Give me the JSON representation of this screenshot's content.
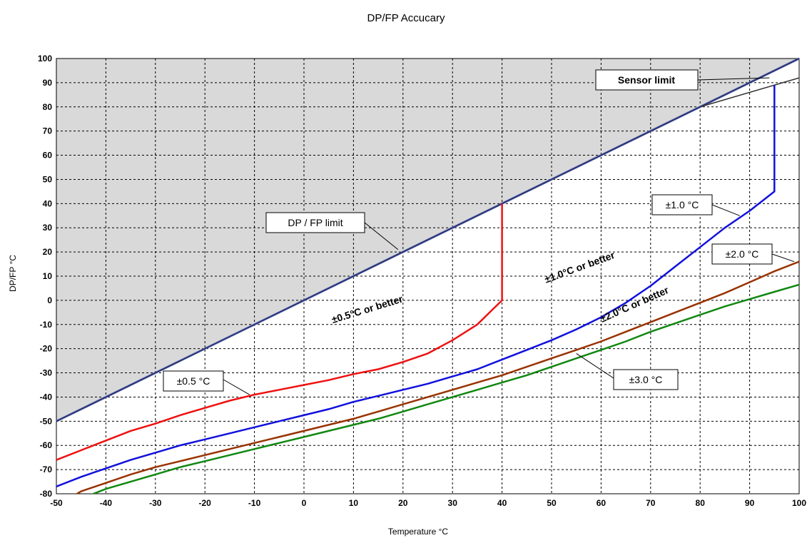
{
  "chart_data": {
    "type": "line",
    "title": "DP/FP Accucary",
    "xlabel": "Temperature °C",
    "ylabel": "DP/FP °C",
    "xlim": [
      -50,
      100
    ],
    "ylim": [
      -80,
      100
    ],
    "x_ticks": [
      -50,
      -40,
      -30,
      -20,
      -10,
      0,
      10,
      20,
      30,
      40,
      50,
      60,
      70,
      80,
      90,
      100
    ],
    "y_ticks": [
      -80,
      -70,
      -60,
      -50,
      -40,
      -30,
      -20,
      -10,
      0,
      10,
      20,
      30,
      40,
      50,
      60,
      70,
      80,
      90,
      100
    ],
    "grid": true,
    "series": [
      {
        "name": "±0.5 °C",
        "color": "#ee1111",
        "points": [
          [
            -50,
            -66
          ],
          [
            -45,
            -62
          ],
          [
            -40,
            -58
          ],
          [
            -35,
            -54
          ],
          [
            -30,
            -51
          ],
          [
            -25,
            -47.5
          ],
          [
            -20,
            -44.5
          ],
          [
            -15,
            -41.5
          ],
          [
            -10,
            -39
          ],
          [
            -5,
            -37
          ],
          [
            0,
            -35
          ],
          [
            5,
            -33
          ],
          [
            10,
            -30.5
          ],
          [
            15,
            -28.5
          ],
          [
            20,
            -25.5
          ],
          [
            25,
            -22
          ],
          [
            30,
            -16.5
          ],
          [
            35,
            -10
          ],
          [
            38,
            -4
          ],
          [
            40,
            0
          ],
          [
            40,
            40
          ]
        ]
      },
      {
        "name": "±1.0 °C",
        "color": "#1111dd",
        "points": [
          [
            -50,
            -77
          ],
          [
            -45,
            -73
          ],
          [
            -40,
            -69.5
          ],
          [
            -35,
            -66
          ],
          [
            -30,
            -63
          ],
          [
            -25,
            -60
          ],
          [
            -20,
            -57.5
          ],
          [
            -15,
            -55
          ],
          [
            -10,
            -52.5
          ],
          [
            -5,
            -50
          ],
          [
            0,
            -47.5
          ],
          [
            5,
            -45
          ],
          [
            10,
            -42
          ],
          [
            15,
            -39.5
          ],
          [
            20,
            -37
          ],
          [
            25,
            -34.5
          ],
          [
            30,
            -31.5
          ],
          [
            35,
            -28.5
          ],
          [
            40,
            -24.5
          ],
          [
            45,
            -20.5
          ],
          [
            50,
            -16.5
          ],
          [
            55,
            -12
          ],
          [
            60,
            -7
          ],
          [
            65,
            -1
          ],
          [
            70,
            6
          ],
          [
            75,
            14
          ],
          [
            80,
            22
          ],
          [
            85,
            30
          ],
          [
            90,
            37
          ],
          [
            95,
            45
          ],
          [
            95,
            89
          ]
        ]
      },
      {
        "name": "±2.0 °C",
        "color": "#993300",
        "points": [
          [
            -50,
            -85
          ],
          [
            -45,
            -79
          ],
          [
            -40,
            -75.5
          ],
          [
            -35,
            -72
          ],
          [
            -30,
            -69
          ],
          [
            -25,
            -66.5
          ],
          [
            -20,
            -64
          ],
          [
            -15,
            -61.5
          ],
          [
            -10,
            -59
          ],
          [
            -5,
            -56.5
          ],
          [
            0,
            -54
          ],
          [
            5,
            -51.5
          ],
          [
            10,
            -49
          ],
          [
            15,
            -46
          ],
          [
            20,
            -43
          ],
          [
            25,
            -40
          ],
          [
            30,
            -37
          ],
          [
            35,
            -34
          ],
          [
            40,
            -31
          ],
          [
            45,
            -27.5
          ],
          [
            50,
            -24
          ],
          [
            55,
            -20.5
          ],
          [
            60,
            -17
          ],
          [
            65,
            -13
          ],
          [
            70,
            -9
          ],
          [
            75,
            -5
          ],
          [
            80,
            -1
          ],
          [
            85,
            3
          ],
          [
            90,
            7.5
          ],
          [
            95,
            12
          ],
          [
            100,
            16
          ]
        ]
      },
      {
        "name": "±3.0 °C",
        "color": "#118811",
        "points": [
          [
            -50,
            -88
          ],
          [
            -45,
            -82
          ],
          [
            -40,
            -78
          ],
          [
            -35,
            -75
          ],
          [
            -30,
            -72
          ],
          [
            -25,
            -69
          ],
          [
            -20,
            -66.5
          ],
          [
            -15,
            -64
          ],
          [
            -10,
            -61.5
          ],
          [
            -5,
            -59
          ],
          [
            0,
            -56.5
          ],
          [
            5,
            -54
          ],
          [
            10,
            -51.5
          ],
          [
            15,
            -49
          ],
          [
            20,
            -46
          ],
          [
            25,
            -43
          ],
          [
            30,
            -40
          ],
          [
            35,
            -37
          ],
          [
            40,
            -34
          ],
          [
            45,
            -31
          ],
          [
            50,
            -27.5
          ],
          [
            55,
            -24
          ],
          [
            60,
            -20.5
          ],
          [
            65,
            -17
          ],
          [
            70,
            -13
          ],
          [
            75,
            -9.5
          ],
          [
            80,
            -6
          ],
          [
            85,
            -2.5
          ],
          [
            90,
            0.5
          ],
          [
            95,
            3.5
          ],
          [
            100,
            6.5
          ]
        ]
      }
    ],
    "limit_line": {
      "name": "DP / FP limit",
      "color": "#5566aa",
      "points": [
        [
          -50,
          -50
        ],
        [
          100,
          100
        ]
      ]
    },
    "sensor_limit_line": {
      "name": "Sensor limit",
      "color": "#333333",
      "points": [
        [
          80,
          80
        ],
        [
          100,
          92
        ]
      ]
    },
    "shaded_region_color": "#d9d9d9",
    "annotations": {
      "sensor_limit": "Sensor limit",
      "dp_fp_limit": "DP / FP limit",
      "acc_1_0": "±1.0 °C",
      "acc_2_0": "±2.0 °C",
      "acc_0_5": "±0.5 °C",
      "acc_3_0": "±3.0 °C",
      "region_0_5": "±0.5°C or better",
      "region_1_0": "±1.0°C or better",
      "region_2_0": "±2.0°C or better"
    }
  }
}
